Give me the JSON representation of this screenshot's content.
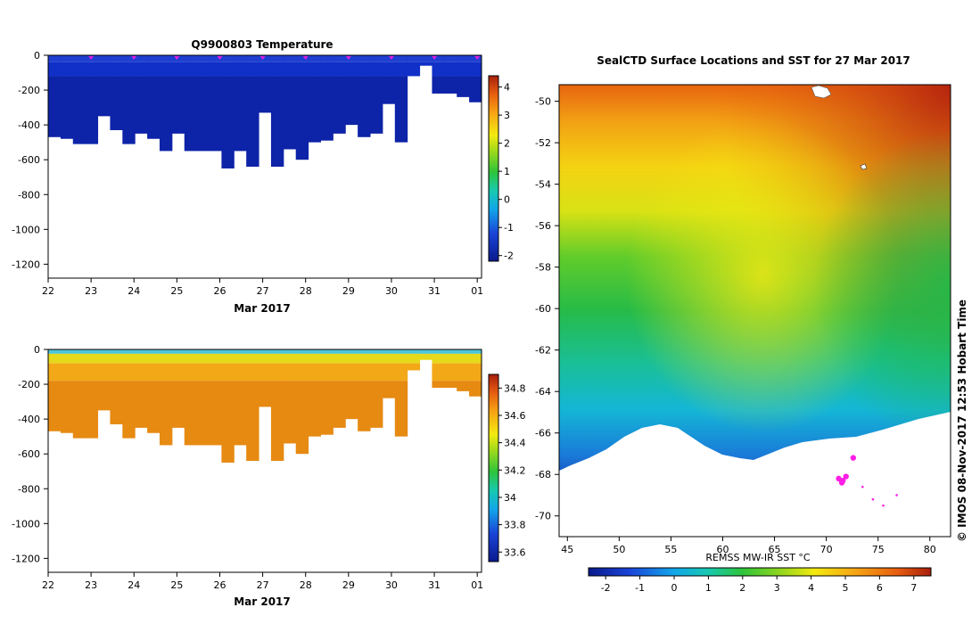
{
  "chart_data": [
    {
      "type": "heatmap",
      "title": "Q9900803  Temperature",
      "xlabel": "Mar 2017",
      "ylabel": "",
      "x_ticks": [
        "22",
        "23",
        "24",
        "25",
        "26",
        "27",
        "28",
        "29",
        "30",
        "31",
        "01"
      ],
      "y_ticks": [
        "0",
        "-200",
        "-400",
        "-600",
        "-800",
        "-1000",
        "-1200"
      ],
      "ylim": [
        -1280,
        0
      ],
      "colorbar": {
        "ticks": [
          "4",
          "3",
          "2",
          "1",
          "0",
          "-1",
          "-2"
        ],
        "range": [
          -2.2,
          4.4
        ]
      },
      "profile_markers_days": [
        23,
        24,
        25,
        26,
        27,
        28,
        29,
        30,
        31,
        32
      ],
      "profile_max_depth_m": [
        -470,
        -480,
        -510,
        -510,
        -350,
        -430,
        -510,
        -450,
        -480,
        -550,
        -450,
        -550,
        -550,
        -550,
        -650,
        -550,
        -640,
        -330,
        -640,
        -540,
        -600,
        -500,
        -490,
        -450,
        -400,
        -470,
        -450,
        -280,
        -500,
        -120,
        -60,
        -220,
        -220,
        -240,
        -270
      ]
    },
    {
      "type": "heatmap",
      "title": "",
      "xlabel": "Mar 2017",
      "ylabel": "",
      "x_ticks": [
        "22",
        "23",
        "24",
        "25",
        "26",
        "27",
        "28",
        "29",
        "30",
        "31",
        "01"
      ],
      "y_ticks": [
        "0",
        "-200",
        "-400",
        "-600",
        "-800",
        "-1000",
        "-1200"
      ],
      "ylim": [
        -1280,
        0
      ],
      "colorbar": {
        "ticks": [
          "34.8",
          "34.6",
          "34.4",
          "34.2",
          "34",
          "33.8",
          "33.6"
        ],
        "range": [
          33.53,
          34.9
        ]
      },
      "profile_max_depth_m": [
        -470,
        -480,
        -510,
        -510,
        -350,
        -430,
        -510,
        -450,
        -480,
        -550,
        -450,
        -550,
        -550,
        -550,
        -650,
        -550,
        -640,
        -330,
        -640,
        -540,
        -600,
        -500,
        -490,
        -450,
        -400,
        -470,
        -450,
        -280,
        -500,
        -120,
        -60,
        -220,
        -220,
        -240,
        -270
      ]
    },
    {
      "type": "heatmap",
      "title": "SealCTD Surface Locations and SST for 27 Mar 2017",
      "xlabel": "REMSS MW-IR SST °C",
      "x_ticks": [
        "45",
        "50",
        "55",
        "60",
        "65",
        "70",
        "75",
        "80"
      ],
      "y_ticks": [
        "-50",
        "-52",
        "-54",
        "-56",
        "-58",
        "-60",
        "-62",
        "-64",
        "-66",
        "-68",
        "-70"
      ],
      "xlim": [
        44.2,
        82.0
      ],
      "ylim": [
        -71.0,
        -49.2
      ],
      "colorbar": {
        "ticks": [
          "-2",
          "-1",
          "0",
          "1",
          "2",
          "3",
          "4",
          "5",
          "6",
          "7"
        ],
        "range": [
          -2.5,
          7.5
        ]
      },
      "seal_track_points": [
        [
          72.6,
          -67.2
        ],
        [
          71.9,
          -68.1
        ],
        [
          71.6,
          -68.3
        ],
        [
          71.2,
          -68.2
        ],
        [
          71.5,
          -68.4
        ],
        [
          73.5,
          -68.6
        ],
        [
          74.5,
          -69.2
        ],
        [
          75.5,
          -69.5
        ],
        [
          76.8,
          -69.0
        ]
      ],
      "credit": "© IMOS 08-Nov-2017 12:53 Hobart Time"
    }
  ]
}
